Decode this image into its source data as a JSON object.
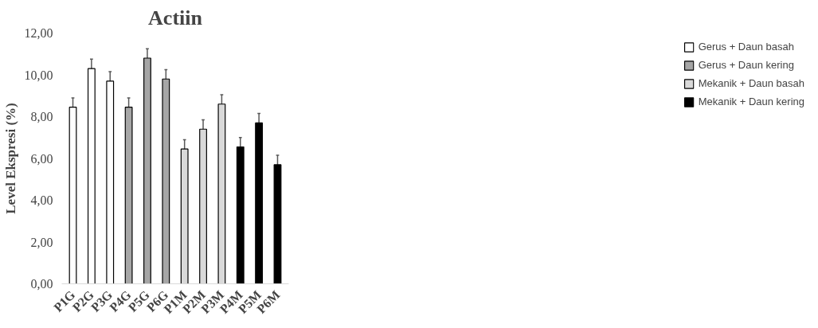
{
  "chart_data": {
    "type": "bar",
    "title": "Actiin",
    "ylabel": "Level Ekspresi (%)",
    "categories": [
      "P1G",
      "P2G",
      "P3G",
      "P4G",
      "P5G",
      "P6G",
      "P1M",
      "P2M",
      "P3M",
      "P4M",
      "P5M",
      "P6M"
    ],
    "series": [
      {
        "name": "Gerus + Daun basah",
        "color": "#ffffff",
        "values": [
          8.45,
          10.3,
          9.7,
          null,
          null,
          null,
          null,
          null,
          null,
          null,
          null,
          null
        ],
        "errors": [
          0.45,
          0.45,
          0.45,
          null,
          null,
          null,
          null,
          null,
          null,
          null,
          null,
          null
        ]
      },
      {
        "name": "Gerus + Daun kering",
        "color": "#a6a6a6",
        "values": [
          null,
          null,
          null,
          8.45,
          10.8,
          9.8,
          null,
          null,
          null,
          null,
          null,
          null
        ],
        "errors": [
          null,
          null,
          null,
          0.45,
          0.45,
          0.45,
          null,
          null,
          null,
          null,
          null,
          null
        ]
      },
      {
        "name": "Mekanik + Daun basah",
        "color": "#d9d9d9",
        "values": [
          null,
          null,
          null,
          null,
          null,
          null,
          6.45,
          7.4,
          8.6,
          null,
          null,
          null
        ],
        "errors": [
          null,
          null,
          null,
          null,
          null,
          null,
          0.45,
          0.45,
          0.45,
          null,
          null,
          null
        ]
      },
      {
        "name": "Mekanik + Daun kering",
        "color": "#000000",
        "values": [
          null,
          null,
          null,
          null,
          null,
          null,
          null,
          null,
          null,
          6.55,
          7.7,
          5.7
        ],
        "errors": [
          null,
          null,
          null,
          null,
          null,
          null,
          null,
          null,
          null,
          0.45,
          0.45,
          0.45
        ]
      }
    ],
    "ylim": [
      0,
      12
    ],
    "yticks": [
      {
        "value": 0,
        "label": "0,00"
      },
      {
        "value": 2,
        "label": "2,00"
      },
      {
        "value": 4,
        "label": "4,00"
      },
      {
        "value": 6,
        "label": "6,00"
      },
      {
        "value": 8,
        "label": "8,00"
      },
      {
        "value": 10,
        "label": "10,00"
      },
      {
        "value": 12,
        "label": "12,00"
      }
    ],
    "grid": false,
    "legend": "right"
  }
}
